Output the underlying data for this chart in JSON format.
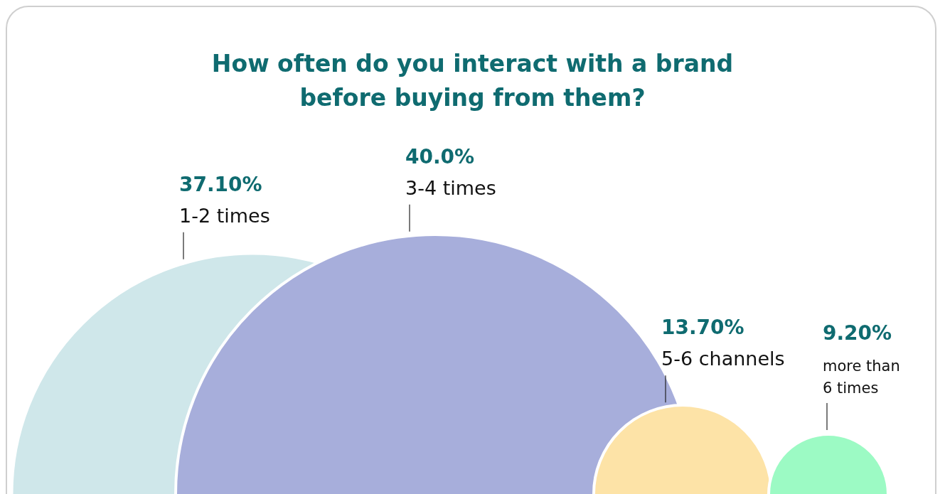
{
  "chart_data": {
    "type": "other",
    "title": "How often do you interact with a brand before buying from them?",
    "categories": [
      "1-2 times",
      "3-4 times",
      "5-6 channels",
      "more than 6 times"
    ],
    "values": [
      37.1,
      40.0,
      13.7,
      9.2
    ],
    "value_labels": [
      "37.10%",
      "40.0%",
      "13.70%",
      "9.20%"
    ],
    "colors": [
      "#cfe7ea",
      "#a7aedb",
      "#fde3a7",
      "#9cfac4"
    ]
  }
}
